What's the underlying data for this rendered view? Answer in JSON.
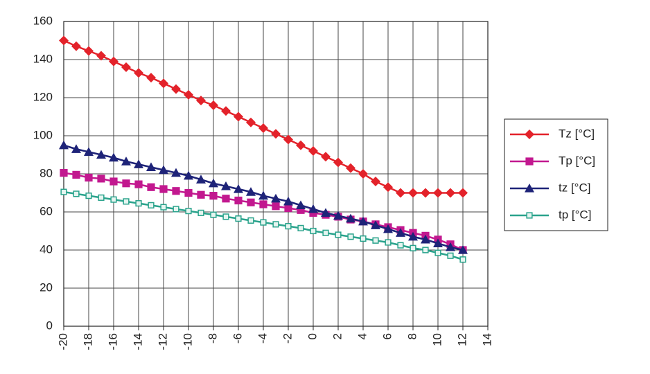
{
  "chart_data": {
    "type": "line",
    "x": [
      -20,
      -19,
      -18,
      -17,
      -16,
      -15,
      -14,
      -13,
      -12,
      -11,
      -10,
      -9,
      -8,
      -7,
      -6,
      -5,
      -4,
      -3,
      -2,
      -1,
      0,
      1,
      2,
      3,
      4,
      5,
      6,
      7,
      8,
      9,
      10,
      11,
      12
    ],
    "series": [
      {
        "name": "Tz [°C]",
        "color": "#e3222a",
        "marker": "diamond",
        "values": [
          150,
          147,
          144.5,
          142,
          139,
          136,
          133,
          130.5,
          127.5,
          124.5,
          121.5,
          118.5,
          116,
          113,
          110,
          107,
          104,
          101,
          98,
          95,
          92,
          89,
          86,
          83,
          80,
          76,
          73,
          70,
          70,
          70,
          70,
          70,
          70
        ]
      },
      {
        "name": "Tp [°C]",
        "color": "#c2188f",
        "marker": "square",
        "values": [
          80.5,
          79.5,
          78,
          77.5,
          76,
          75,
          74.5,
          73,
          72,
          71,
          70,
          69,
          68.5,
          67,
          66,
          65,
          64,
          63,
          62,
          61,
          59.5,
          58.5,
          57.5,
          56,
          55,
          53.5,
          52,
          50.5,
          49,
          47.5,
          45.5,
          43,
          40
        ]
      },
      {
        "name": "tz [°C]",
        "color": "#1e2378",
        "marker": "triangle",
        "values": [
          95,
          93,
          91.5,
          90,
          88.5,
          86.5,
          85,
          83.5,
          82,
          80.5,
          79,
          77,
          75,
          73.5,
          72,
          70.5,
          68.5,
          67,
          65.5,
          63.5,
          61.5,
          59.5,
          58,
          56.5,
          55,
          53,
          51,
          49,
          47,
          45.5,
          43.5,
          41.5,
          40
        ]
      },
      {
        "name": "tp [°C]",
        "color": "#2aa38c",
        "marker": "hollow-square",
        "values": [
          70.5,
          69.5,
          68.5,
          67.5,
          66.5,
          65.5,
          64.5,
          63.5,
          62.5,
          61.5,
          60.5,
          59.5,
          58.5,
          57.5,
          56.5,
          55.5,
          54.5,
          53.5,
          52.5,
          51.5,
          50,
          49,
          48,
          47,
          46,
          45,
          44,
          42.5,
          41,
          40,
          38.5,
          37,
          35
        ]
      }
    ],
    "xlim": [
      -20,
      14
    ],
    "xticks": [
      -20,
      -18,
      -16,
      -14,
      -12,
      -10,
      -8,
      -6,
      -4,
      -2,
      0,
      2,
      4,
      6,
      8,
      10,
      12,
      14
    ],
    "ylim": [
      0,
      160
    ],
    "yticks": [
      0,
      20,
      40,
      60,
      80,
      100,
      120,
      140,
      160
    ],
    "grid": true,
    "legend": "right"
  }
}
